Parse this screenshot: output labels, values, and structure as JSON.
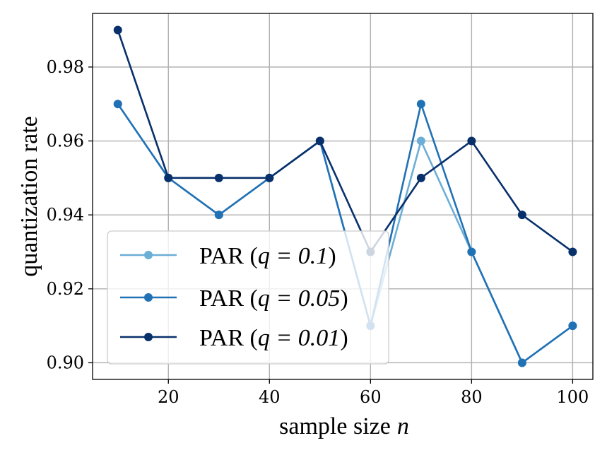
{
  "chart_data": {
    "type": "line",
    "title": "",
    "xlabel": "sample size",
    "xlabel_var": "n",
    "ylabel": "quantization rate",
    "x": [
      10,
      20,
      30,
      40,
      50,
      60,
      70,
      80,
      90,
      100
    ],
    "xlim": [
      5,
      104
    ],
    "ylim": [
      0.8955,
      0.9945
    ],
    "xticks": [
      20,
      40,
      60,
      80,
      100
    ],
    "xtick_labels": [
      "20",
      "40",
      "60",
      "80",
      "100"
    ],
    "yticks": [
      0.9,
      0.92,
      0.94,
      0.96,
      0.98
    ],
    "ytick_labels": [
      "0.90",
      "0.92",
      "0.94",
      "0.96",
      "0.98"
    ],
    "grid": true,
    "legend_position": "lower-left",
    "series": [
      {
        "name": "PAR",
        "legend_param": "q = 0.1",
        "color": "#6baed6",
        "values": [
          0.97,
          0.95,
          0.94,
          0.95,
          0.96,
          0.91,
          0.96,
          0.93,
          0.9,
          0.91
        ]
      },
      {
        "name": "PAR",
        "legend_param": "q = 0.05",
        "color": "#2171b5",
        "values": [
          0.97,
          0.95,
          0.94,
          0.95,
          0.96,
          0.91,
          0.97,
          0.93,
          0.9,
          0.91
        ]
      },
      {
        "name": "PAR",
        "legend_param": "q = 0.01",
        "color": "#08306b",
        "values": [
          0.99,
          0.95,
          0.95,
          0.95,
          0.96,
          0.93,
          0.95,
          0.96,
          0.94,
          0.93
        ]
      }
    ]
  }
}
